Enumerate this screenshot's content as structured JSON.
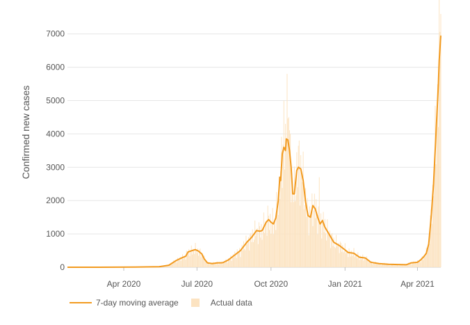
{
  "chart_data": {
    "type": "bar",
    "ylabel": "Confirmed new cases",
    "xlabel": "",
    "ylim": [
      0,
      7600
    ],
    "yticks": [
      0,
      1000,
      2000,
      3000,
      4000,
      5000,
      6000,
      7000
    ],
    "ytick_labels": [
      "0",
      "1000",
      "2000",
      "3000",
      "4000",
      "5000",
      "6000",
      "7000"
    ],
    "xlim": [
      "2020-01-22",
      "2021-04-30"
    ],
    "xticks": [
      {
        "date": "2020-04-01",
        "label": "Apr 2020"
      },
      {
        "date": "2020-07-01",
        "label": "Jul 2020"
      },
      {
        "date": "2020-10-01",
        "label": "Oct 2020"
      },
      {
        "date": "2021-01-01",
        "label": "Jan 2021"
      },
      {
        "date": "2021-04-01",
        "label": "Apr 2021"
      }
    ],
    "grid": true,
    "legend_position": "bottom-left",
    "series": [
      {
        "name": "7-day moving average",
        "type": "line",
        "color": "#f29a1f",
        "points": [
          [
            "2020-01-22",
            0
          ],
          [
            "2020-03-01",
            0
          ],
          [
            "2020-04-15",
            5
          ],
          [
            "2020-05-15",
            15
          ],
          [
            "2020-05-27",
            60
          ],
          [
            "2020-06-05",
            200
          ],
          [
            "2020-06-12",
            280
          ],
          [
            "2020-06-17",
            330
          ],
          [
            "2020-06-20",
            460
          ],
          [
            "2020-06-25",
            500
          ],
          [
            "2020-06-29",
            530
          ],
          [
            "2020-07-03",
            480
          ],
          [
            "2020-07-07",
            400
          ],
          [
            "2020-07-10",
            250
          ],
          [
            "2020-07-14",
            130
          ],
          [
            "2020-07-20",
            110
          ],
          [
            "2020-07-26",
            130
          ],
          [
            "2020-08-02",
            135
          ],
          [
            "2020-08-09",
            220
          ],
          [
            "2020-08-16",
            350
          ],
          [
            "2020-08-24",
            500
          ],
          [
            "2020-09-01",
            750
          ],
          [
            "2020-09-07",
            900
          ],
          [
            "2020-09-13",
            1100
          ],
          [
            "2020-09-17",
            1080
          ],
          [
            "2020-09-20",
            1100
          ],
          [
            "2020-09-25",
            1350
          ],
          [
            "2020-09-28",
            1430
          ],
          [
            "2020-10-01",
            1350
          ],
          [
            "2020-10-04",
            1300
          ],
          [
            "2020-10-07",
            1480
          ],
          [
            "2020-10-10",
            2000
          ],
          [
            "2020-10-12",
            2700
          ],
          [
            "2020-10-13",
            2600
          ],
          [
            "2020-10-15",
            3400
          ],
          [
            "2020-10-17",
            3600
          ],
          [
            "2020-10-19",
            3500
          ],
          [
            "2020-10-20",
            3850
          ],
          [
            "2020-10-22",
            3820
          ],
          [
            "2020-10-24",
            3500
          ],
          [
            "2020-10-26",
            3000
          ],
          [
            "2020-10-28",
            2200
          ],
          [
            "2020-10-30",
            2200
          ],
          [
            "2020-11-02",
            2900
          ],
          [
            "2020-11-04",
            3000
          ],
          [
            "2020-11-07",
            2950
          ],
          [
            "2020-11-10",
            2600
          ],
          [
            "2020-11-13",
            1950
          ],
          [
            "2020-11-16",
            1550
          ],
          [
            "2020-11-19",
            1500
          ],
          [
            "2020-11-22",
            1850
          ],
          [
            "2020-11-25",
            1750
          ],
          [
            "2020-11-28",
            1500
          ],
          [
            "2020-12-01",
            1300
          ],
          [
            "2020-12-04",
            1400
          ],
          [
            "2020-12-07",
            1200
          ],
          [
            "2020-12-12",
            1000
          ],
          [
            "2020-12-18",
            750
          ],
          [
            "2020-12-25",
            650
          ],
          [
            "2021-01-01",
            520
          ],
          [
            "2021-01-05",
            440
          ],
          [
            "2021-01-12",
            420
          ],
          [
            "2021-01-19",
            300
          ],
          [
            "2021-01-26",
            280
          ],
          [
            "2021-02-02",
            150
          ],
          [
            "2021-02-12",
            110
          ],
          [
            "2021-02-24",
            90
          ],
          [
            "2021-03-08",
            80
          ],
          [
            "2021-03-18",
            75
          ],
          [
            "2021-03-24",
            130
          ],
          [
            "2021-04-01",
            150
          ],
          [
            "2021-04-05",
            220
          ],
          [
            "2021-04-09",
            320
          ],
          [
            "2021-04-12",
            420
          ],
          [
            "2021-04-15",
            700
          ],
          [
            "2021-04-18",
            1500
          ],
          [
            "2021-04-21",
            2500
          ],
          [
            "2021-04-24",
            4000
          ],
          [
            "2021-04-27",
            5500
          ],
          [
            "2021-04-28",
            6200
          ],
          [
            "2021-04-30",
            6950
          ]
        ]
      },
      {
        "name": "Actual data",
        "type": "bar",
        "color": "#fce3c1",
        "spikes": [
          [
            "2020-10-17",
            5000
          ],
          [
            "2020-10-19",
            4300
          ],
          [
            "2020-10-21",
            5800
          ],
          [
            "2020-10-23",
            4500
          ],
          [
            "2020-11-05",
            3800
          ],
          [
            "2020-11-30",
            2700
          ],
          [
            "2021-04-30",
            7600
          ]
        ]
      }
    ]
  }
}
